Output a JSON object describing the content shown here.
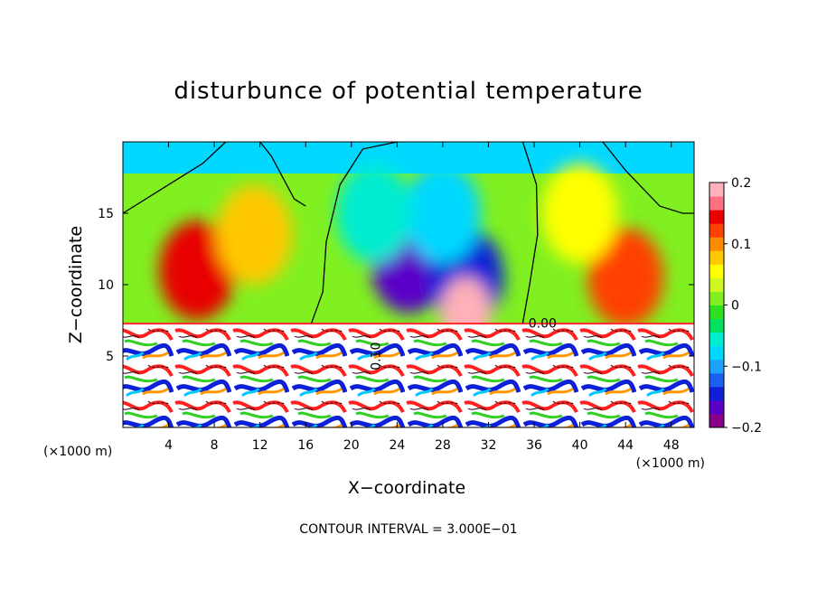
{
  "chart_data": {
    "type": "heatmap",
    "title": "disturbunce of potential temperature",
    "xlabel": "X−coordinate",
    "ylabel": "Z−coordinate",
    "x_unit_label": "(×1000 m)",
    "x_unit_label_right": "(×1000 m)",
    "xlim": [
      0,
      50
    ],
    "ylim": [
      0,
      20
    ],
    "x_ticks": [
      4,
      8,
      12,
      16,
      20,
      24,
      28,
      32,
      36,
      40,
      44,
      48
    ],
    "x_tick_labels": [
      "4",
      "8",
      "12",
      "16",
      "20",
      "24",
      "28",
      "32",
      "36",
      "40",
      "44",
      "48"
    ],
    "y_ticks": [
      5,
      10,
      15
    ],
    "y_tick_labels": [
      "5",
      "10",
      "15"
    ],
    "colorbar": {
      "range": [
        -0.2,
        0.2
      ],
      "ticks": [
        0.2,
        0.1,
        0,
        -0.1,
        -0.2
      ],
      "tick_labels": [
        "0.2",
        "0.1",
        "0",
        "−0.1",
        "−0.2"
      ],
      "colors": [
        "#8b008b",
        "#5a00c8",
        "#1020d8",
        "#1a60f0",
        "#1ea0ff",
        "#00d8ff",
        "#00ecd0",
        "#00e060",
        "#30e020",
        "#80f020",
        "#d0f820",
        "#ffff00",
        "#ffc800",
        "#ff8c00",
        "#ff4000",
        "#e80000",
        "#ff7080",
        "#ffb0b8"
      ]
    },
    "field_features": [
      {
        "kind": "blob",
        "x": 6.5,
        "z": 11.0,
        "value": 0.15
      },
      {
        "kind": "blob",
        "x": 11.5,
        "z": 13.5,
        "value": 0.08
      },
      {
        "kind": "blob",
        "x": 44.0,
        "z": 10.5,
        "value": 0.12
      },
      {
        "kind": "blob",
        "x": 40.0,
        "z": 15.0,
        "value": 0.06
      },
      {
        "kind": "blob",
        "x": 25.0,
        "z": 11.5,
        "value": -0.16
      },
      {
        "kind": "blob",
        "x": 30.0,
        "z": 10.5,
        "value": -0.14
      },
      {
        "kind": "blob",
        "x": 28.0,
        "z": 15.0,
        "value": -0.08
      },
      {
        "kind": "blob",
        "x": 22.0,
        "z": 15.0,
        "value": -0.06
      },
      {
        "kind": "blob",
        "x": 30.0,
        "z": 8.0,
        "value": 0.2
      }
    ],
    "boundary_z": 7.3,
    "contour_label": "0.00",
    "lower_layer_label": "0.10"
  },
  "footnote": "CONTOUR INTERVAL = 3.000E−01"
}
